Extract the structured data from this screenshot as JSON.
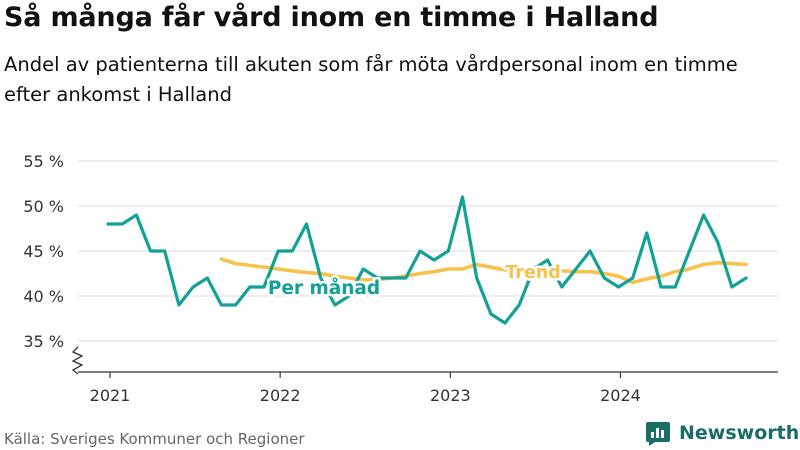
{
  "title": "Så många får vård inom en timme i Halland",
  "subtitle": "Andel av patienterna till akuten som får möta vårdpersonal inom en timme efter ankomst i Halland",
  "source": "Källa: Sveriges Kommuner och Regioner",
  "brand": {
    "name": "Newsworthy",
    "icon": "newsworthy-logo-icon"
  },
  "chart_data": {
    "type": "line",
    "x_start": "2021-01",
    "x_ticks": [
      "2021",
      "2022",
      "2023",
      "2024"
    ],
    "y_ticks": [
      {
        "value": 35,
        "label": "35 %"
      },
      {
        "value": 40,
        "label": "40 %"
      },
      {
        "value": 45,
        "label": "45 %"
      },
      {
        "value": 50,
        "label": "50 %"
      },
      {
        "value": 55,
        "label": "55 %"
      }
    ],
    "ylim": [
      31,
      55
    ],
    "axis_break": true,
    "grid": true,
    "series": [
      {
        "name": "Per månad",
        "color": "#13a097",
        "start": "2021-01",
        "values": [
          48,
          48,
          49,
          45,
          45,
          39,
          41,
          42,
          39,
          39,
          41,
          41,
          45,
          45,
          48,
          42,
          39,
          40,
          43,
          42,
          42,
          42,
          45,
          44,
          45,
          51,
          42,
          38,
          37,
          39,
          43,
          44,
          41,
          43,
          45,
          42,
          41,
          42,
          47,
          41,
          41,
          45,
          49,
          46,
          41,
          42
        ]
      },
      {
        "name": "Trend",
        "color": "#f7c24c",
        "start": "2021-09",
        "values": [
          44.1,
          43.6,
          43.4,
          43.2,
          43.0,
          42.8,
          42.6,
          42.5,
          42.2,
          42.0,
          41.8,
          41.8,
          42.0,
          42.2,
          42.5,
          42.7,
          43.0,
          43.0,
          43.5,
          43.2,
          42.9,
          42.7,
          42.6,
          42.7,
          42.8,
          42.7,
          42.7,
          42.5,
          42.2,
          41.5,
          41.9,
          42.2,
          42.7,
          43.0,
          43.5,
          43.7,
          43.6,
          43.5
        ]
      }
    ]
  }
}
